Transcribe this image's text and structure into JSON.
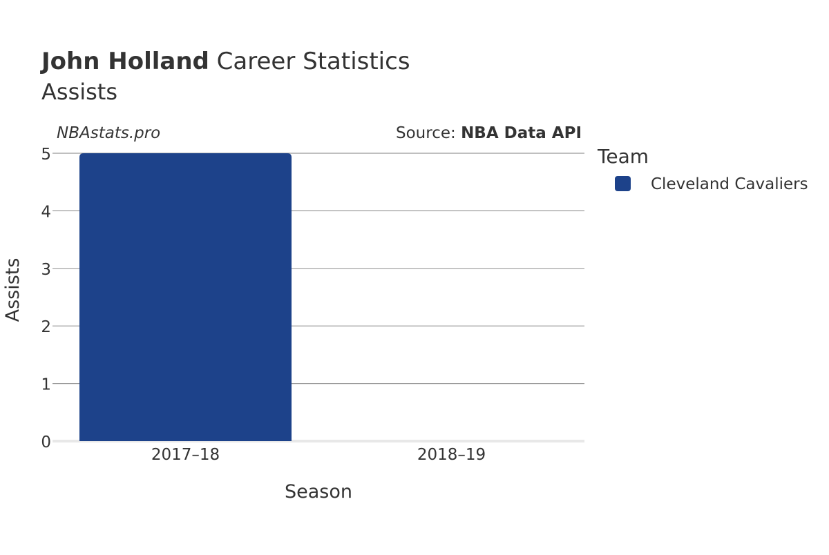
{
  "title": {
    "bold": "John Holland",
    "rest": " Career Statistics"
  },
  "subtitle": "Assists",
  "watermark": "NBAstats.pro",
  "source": {
    "prefix": "Source: ",
    "name": "NBA Data API"
  },
  "legend": {
    "title": "Team",
    "items": [
      {
        "label": "Cleveland Cavaliers",
        "color": "#1d428a"
      }
    ]
  },
  "chart_data": {
    "type": "bar",
    "title": "John Holland Career Statistics",
    "subtitle": "Assists",
    "xlabel": "Season",
    "ylabel": "Assists",
    "categories": [
      "2017–18",
      "2018–19"
    ],
    "series": [
      {
        "name": "Cleveland Cavaliers",
        "color": "#1d428a",
        "values": [
          5,
          0
        ]
      }
    ],
    "ylim": [
      0,
      5
    ],
    "yticks": [
      "0",
      "1",
      "2",
      "3",
      "4",
      "5"
    ],
    "grid": true,
    "legend_position": "right"
  }
}
